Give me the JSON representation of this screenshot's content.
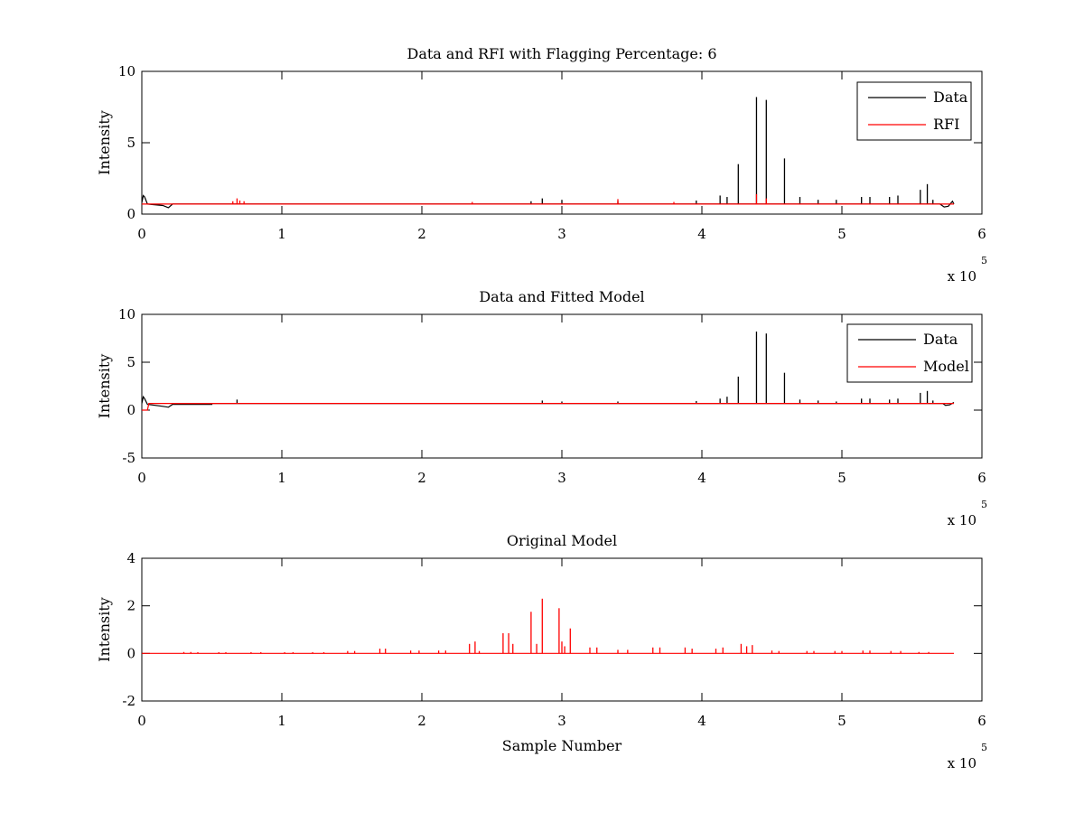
{
  "colors": {
    "data": "#000000",
    "rfi": "#ff0000",
    "model": "#ff0000",
    "background": "#ffffff"
  },
  "chart_data": [
    {
      "type": "line",
      "title": "Data and RFI with Flagging Percentage: 6",
      "xlabel": "",
      "ylabel": "Intensity",
      "xlim": [
        0,
        6
      ],
      "ylim": [
        0,
        10
      ],
      "xticks": [
        "0",
        "1",
        "2",
        "3",
        "4",
        "5",
        "6"
      ],
      "yticks": [
        "0",
        "5",
        "10"
      ],
      "x_multiplier": {
        "base": "x 10",
        "exponent": "5"
      },
      "x_unit_note": "x values in units of 10^5 samples",
      "grid": false,
      "legend_position": "top-right",
      "baseline": 0.7,
      "data_extent": [
        0,
        5.8
      ],
      "series": [
        {
          "name": "Data",
          "color": "#000000",
          "start_bump": [
            [
              0,
              0.8
            ],
            [
              0.01,
              1.3
            ],
            [
              0.02,
              1.2
            ],
            [
              0.04,
              0.7
            ],
            [
              0.15,
              0.6
            ],
            [
              0.19,
              0.45
            ],
            [
              0.22,
              0.7
            ],
            [
              0.24,
              0.7
            ]
          ],
          "end_bump": [
            [
              5.7,
              0.7
            ],
            [
              5.73,
              0.5
            ],
            [
              5.76,
              0.55
            ],
            [
              5.79,
              0.9
            ],
            [
              5.8,
              0.7
            ]
          ],
          "spikes": [
            [
              2.78,
              0.9
            ],
            [
              2.86,
              1.1
            ],
            [
              3.0,
              1.0
            ],
            [
              3.4,
              0.9
            ],
            [
              3.96,
              0.95
            ],
            [
              4.13,
              1.3
            ],
            [
              4.18,
              1.2
            ],
            [
              4.26,
              3.5
            ],
            [
              4.39,
              8.2
            ],
            [
              4.46,
              8.0
            ],
            [
              4.59,
              3.9
            ],
            [
              4.7,
              1.2
            ],
            [
              4.83,
              1.0
            ],
            [
              4.96,
              1.0
            ],
            [
              5.14,
              1.2
            ],
            [
              5.2,
              1.2
            ],
            [
              5.34,
              1.2
            ],
            [
              5.4,
              1.3
            ],
            [
              5.56,
              1.7
            ],
            [
              5.61,
              2.1
            ],
            [
              5.65,
              1.0
            ]
          ]
        },
        {
          "name": "RFI",
          "color": "#ff0000",
          "spikes": [
            [
              0.65,
              0.9
            ],
            [
              0.68,
              1.1
            ],
            [
              0.7,
              0.95
            ],
            [
              0.73,
              0.9
            ],
            [
              2.36,
              0.85
            ],
            [
              3.4,
              1.05
            ],
            [
              3.8,
              0.85
            ],
            [
              4.39,
              1.4
            ],
            [
              4.46,
              1.1
            ]
          ]
        }
      ]
    },
    {
      "type": "line",
      "title": "Data and Fitted Model",
      "xlabel": "",
      "ylabel": "Intensity",
      "xlim": [
        0,
        6
      ],
      "ylim": [
        -5,
        10
      ],
      "xticks": [
        "0",
        "1",
        "2",
        "3",
        "4",
        "5",
        "6"
      ],
      "yticks": [
        "-5",
        "0",
        "5",
        "10"
      ],
      "x_multiplier": {
        "base": "x 10",
        "exponent": "5"
      },
      "x_unit_note": "x values in units of 10^5 samples",
      "grid": false,
      "legend_position": "top-right",
      "baseline": 0.7,
      "data_extent": [
        0,
        5.8
      ],
      "series": [
        {
          "name": "Data",
          "color": "#000000",
          "start_bump": [
            [
              0,
              0.7
            ],
            [
              0.01,
              1.4
            ],
            [
              0.02,
              1.2
            ],
            [
              0.04,
              0.6
            ],
            [
              0.15,
              0.4
            ],
            [
              0.19,
              0.3
            ],
            [
              0.22,
              0.6
            ],
            [
              0.5,
              0.6
            ]
          ],
          "end_bump": [
            [
              5.72,
              0.7
            ],
            [
              5.74,
              0.5
            ],
            [
              5.77,
              0.55
            ],
            [
              5.8,
              0.8
            ]
          ],
          "spikes": [
            [
              0.68,
              1.1
            ],
            [
              2.86,
              1.0
            ],
            [
              3.0,
              0.9
            ],
            [
              3.4,
              0.9
            ],
            [
              3.96,
              0.95
            ],
            [
              4.13,
              1.2
            ],
            [
              4.18,
              1.4
            ],
            [
              4.26,
              3.5
            ],
            [
              4.39,
              8.2
            ],
            [
              4.46,
              8.0
            ],
            [
              4.59,
              3.9
            ],
            [
              4.7,
              1.1
            ],
            [
              4.83,
              1.0
            ],
            [
              4.96,
              0.9
            ],
            [
              5.14,
              1.2
            ],
            [
              5.2,
              1.2
            ],
            [
              5.34,
              1.1
            ],
            [
              5.4,
              1.2
            ],
            [
              5.56,
              1.8
            ],
            [
              5.61,
              2.0
            ],
            [
              5.65,
              1.0
            ]
          ]
        },
        {
          "name": "Model",
          "color": "#ff0000",
          "start_dip": [
            [
              0,
              0.0
            ],
            [
              0.04,
              0.0
            ],
            [
              0.05,
              0.7
            ]
          ],
          "spikes": []
        }
      ]
    },
    {
      "type": "line",
      "title": "Original Model",
      "xlabel": "Sample Number",
      "ylabel": "Intensity",
      "xlim": [
        0,
        6
      ],
      "ylim": [
        -2,
        4
      ],
      "xticks": [
        "0",
        "1",
        "2",
        "3",
        "4",
        "5",
        "6"
      ],
      "yticks": [
        "-2",
        "0",
        "2",
        "4"
      ],
      "x_multiplier": {
        "base": "x 10",
        "exponent": "5"
      },
      "x_unit_note": "x values in units of 10^5 samples",
      "grid": false,
      "baseline": 0.0,
      "data_extent": [
        0,
        5.8
      ],
      "series": [
        {
          "name": "",
          "color": "#ff0000",
          "spikes": [
            [
              0.3,
              0.06
            ],
            [
              0.35,
              0.06
            ],
            [
              0.4,
              0.05
            ],
            [
              0.55,
              0.05
            ],
            [
              0.6,
              0.05
            ],
            [
              0.78,
              0.05
            ],
            [
              0.85,
              0.05
            ],
            [
              1.02,
              0.05
            ],
            [
              1.08,
              0.05
            ],
            [
              1.22,
              0.05
            ],
            [
              1.3,
              0.05
            ],
            [
              1.47,
              0.1
            ],
            [
              1.52,
              0.1
            ],
            [
              1.7,
              0.2
            ],
            [
              1.74,
              0.2
            ],
            [
              1.92,
              0.12
            ],
            [
              1.98,
              0.12
            ],
            [
              2.12,
              0.12
            ],
            [
              2.17,
              0.12
            ],
            [
              2.34,
              0.4
            ],
            [
              2.38,
              0.5
            ],
            [
              2.41,
              0.1
            ],
            [
              2.58,
              0.85
            ],
            [
              2.62,
              0.85
            ],
            [
              2.65,
              0.4
            ],
            [
              2.78,
              1.75
            ],
            [
              2.82,
              0.4
            ],
            [
              2.86,
              2.3
            ],
            [
              2.98,
              1.9
            ],
            [
              3.0,
              0.5
            ],
            [
              3.02,
              0.3
            ],
            [
              3.06,
              1.05
            ],
            [
              3.2,
              0.25
            ],
            [
              3.25,
              0.25
            ],
            [
              3.4,
              0.15
            ],
            [
              3.47,
              0.15
            ],
            [
              3.65,
              0.25
            ],
            [
              3.7,
              0.25
            ],
            [
              3.88,
              0.25
            ],
            [
              3.93,
              0.2
            ],
            [
              4.1,
              0.2
            ],
            [
              4.15,
              0.25
            ],
            [
              4.28,
              0.4
            ],
            [
              4.32,
              0.3
            ],
            [
              4.36,
              0.35
            ],
            [
              4.5,
              0.12
            ],
            [
              4.55,
              0.1
            ],
            [
              4.75,
              0.1
            ],
            [
              4.8,
              0.1
            ],
            [
              4.95,
              0.1
            ],
            [
              5.0,
              0.1
            ],
            [
              5.15,
              0.12
            ],
            [
              5.2,
              0.12
            ],
            [
              5.35,
              0.1
            ],
            [
              5.42,
              0.1
            ],
            [
              5.55,
              0.06
            ],
            [
              5.62,
              0.06
            ]
          ]
        }
      ]
    }
  ]
}
